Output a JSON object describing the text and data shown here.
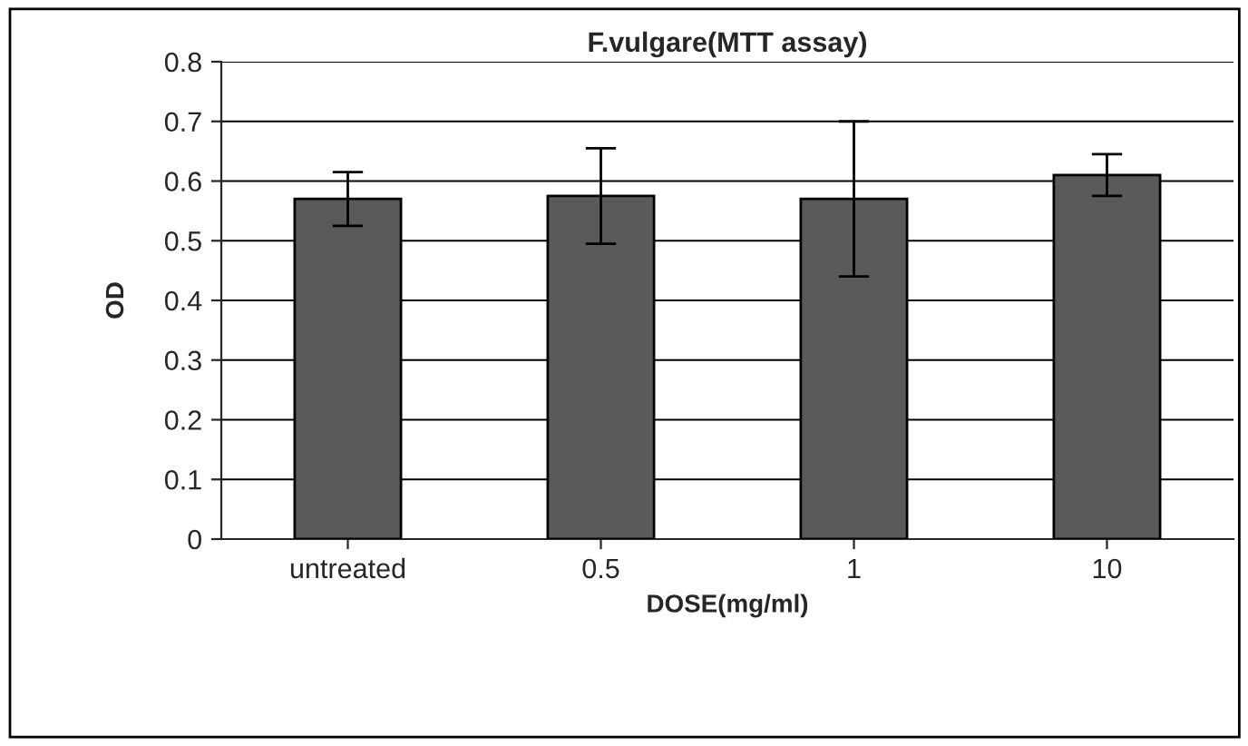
{
  "chart_data": {
    "type": "bar",
    "title": "F.vulgare(MTT assay)",
    "xlabel": "DOSE(mg/ml)",
    "ylabel": "OD",
    "categories": [
      "untreated",
      "0.5",
      "1",
      "10"
    ],
    "values": [
      0.57,
      0.575,
      0.57,
      0.61
    ],
    "errors": [
      0.045,
      0.08,
      0.13,
      0.035
    ],
    "color": "#5a5a5a",
    "ylim": [
      0,
      0.8
    ],
    "yticks": [
      0,
      0.1,
      0.2,
      0.3,
      0.4,
      0.5,
      0.6,
      0.7,
      0.8
    ],
    "grid": "y"
  }
}
